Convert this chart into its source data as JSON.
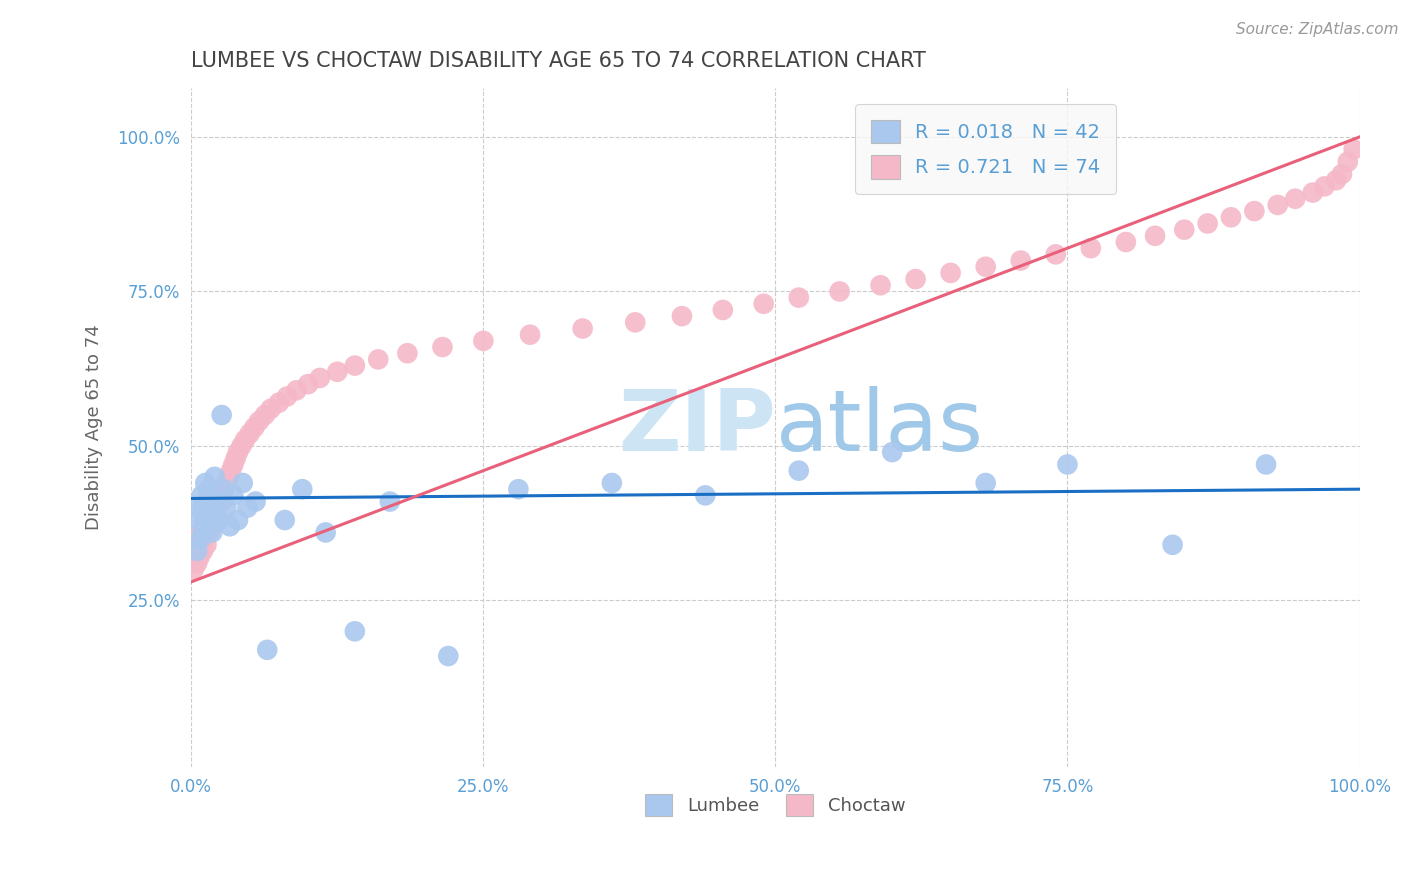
{
  "title": "LUMBEE VS CHOCTAW DISABILITY AGE 65 TO 74 CORRELATION CHART",
  "source_text": "Source: ZipAtlas.com",
  "ylabel": "Disability Age 65 to 74",
  "xlim": [
    0.0,
    1.0
  ],
  "ylim": [
    -0.02,
    1.08
  ],
  "yticks": [
    0.25,
    0.5,
    0.75,
    1.0
  ],
  "ytick_labels": [
    "25.0%",
    "50.0%",
    "75.0%",
    "100.0%"
  ],
  "xticks": [
    0.0,
    0.25,
    0.5,
    0.75,
    1.0
  ],
  "xtick_labels": [
    "0.0%",
    "25.0%",
    "50.0%",
    "75.0%",
    "100.0%"
  ],
  "lumbee_R": 0.018,
  "lumbee_N": 42,
  "choctaw_R": 0.721,
  "choctaw_N": 74,
  "lumbee_color": "#aac8ee",
  "choctaw_color": "#f5b8c8",
  "lumbee_line_color": "#1a6fc4",
  "choctaw_line_color": "#e8607a",
  "background_color": "#ffffff",
  "grid_color": "#cccccc",
  "title_color": "#444444",
  "axis_label_color": "#5a9fd4",
  "watermark_zip_color": "#cce4f4",
  "watermark_atlas_color": "#a0c8e8",
  "legend_box_color": "#f8f8f8",
  "lumbee_x": [
    0.005,
    0.005,
    0.007,
    0.008,
    0.009,
    0.01,
    0.01,
    0.011,
    0.012,
    0.013,
    0.014,
    0.015,
    0.016,
    0.018,
    0.02,
    0.022,
    0.024,
    0.026,
    0.028,
    0.03,
    0.033,
    0.036,
    0.04,
    0.044,
    0.048,
    0.055,
    0.065,
    0.08,
    0.095,
    0.115,
    0.14,
    0.17,
    0.22,
    0.28,
    0.36,
    0.44,
    0.52,
    0.6,
    0.68,
    0.75,
    0.84,
    0.92
  ],
  "lumbee_y": [
    0.33,
    0.38,
    0.4,
    0.35,
    0.42,
    0.36,
    0.4,
    0.38,
    0.44,
    0.41,
    0.37,
    0.43,
    0.39,
    0.36,
    0.45,
    0.41,
    0.38,
    0.55,
    0.43,
    0.4,
    0.37,
    0.42,
    0.38,
    0.44,
    0.4,
    0.41,
    0.17,
    0.38,
    0.43,
    0.36,
    0.2,
    0.41,
    0.16,
    0.43,
    0.44,
    0.42,
    0.46,
    0.49,
    0.44,
    0.47,
    0.34,
    0.47
  ],
  "choctaw_x": [
    0.002,
    0.004,
    0.005,
    0.006,
    0.007,
    0.008,
    0.009,
    0.01,
    0.011,
    0.012,
    0.013,
    0.014,
    0.015,
    0.016,
    0.017,
    0.018,
    0.02,
    0.022,
    0.024,
    0.026,
    0.028,
    0.03,
    0.032,
    0.034,
    0.036,
    0.038,
    0.04,
    0.043,
    0.046,
    0.05,
    0.054,
    0.058,
    0.063,
    0.068,
    0.075,
    0.082,
    0.09,
    0.1,
    0.11,
    0.125,
    0.14,
    0.16,
    0.185,
    0.215,
    0.25,
    0.29,
    0.335,
    0.38,
    0.42,
    0.455,
    0.49,
    0.52,
    0.555,
    0.59,
    0.62,
    0.65,
    0.68,
    0.71,
    0.74,
    0.77,
    0.8,
    0.825,
    0.85,
    0.87,
    0.89,
    0.91,
    0.93,
    0.945,
    0.96,
    0.97,
    0.98,
    0.985,
    0.99,
    0.995
  ],
  "choctaw_y": [
    0.3,
    0.33,
    0.31,
    0.35,
    0.32,
    0.36,
    0.34,
    0.33,
    0.38,
    0.36,
    0.34,
    0.38,
    0.36,
    0.4,
    0.37,
    0.38,
    0.39,
    0.4,
    0.42,
    0.41,
    0.43,
    0.44,
    0.45,
    0.46,
    0.47,
    0.48,
    0.49,
    0.5,
    0.51,
    0.52,
    0.53,
    0.54,
    0.55,
    0.56,
    0.57,
    0.58,
    0.59,
    0.6,
    0.61,
    0.62,
    0.63,
    0.64,
    0.65,
    0.66,
    0.67,
    0.68,
    0.69,
    0.7,
    0.71,
    0.72,
    0.73,
    0.74,
    0.75,
    0.76,
    0.77,
    0.78,
    0.79,
    0.8,
    0.81,
    0.82,
    0.83,
    0.84,
    0.85,
    0.86,
    0.87,
    0.88,
    0.89,
    0.9,
    0.91,
    0.92,
    0.93,
    0.94,
    0.96,
    0.98
  ],
  "lumbee_line_x": [
    0.0,
    1.0
  ],
  "lumbee_line_y": [
    0.415,
    0.43
  ],
  "choctaw_line_x": [
    0.0,
    1.0
  ],
  "choctaw_line_y": [
    0.28,
    1.0
  ]
}
